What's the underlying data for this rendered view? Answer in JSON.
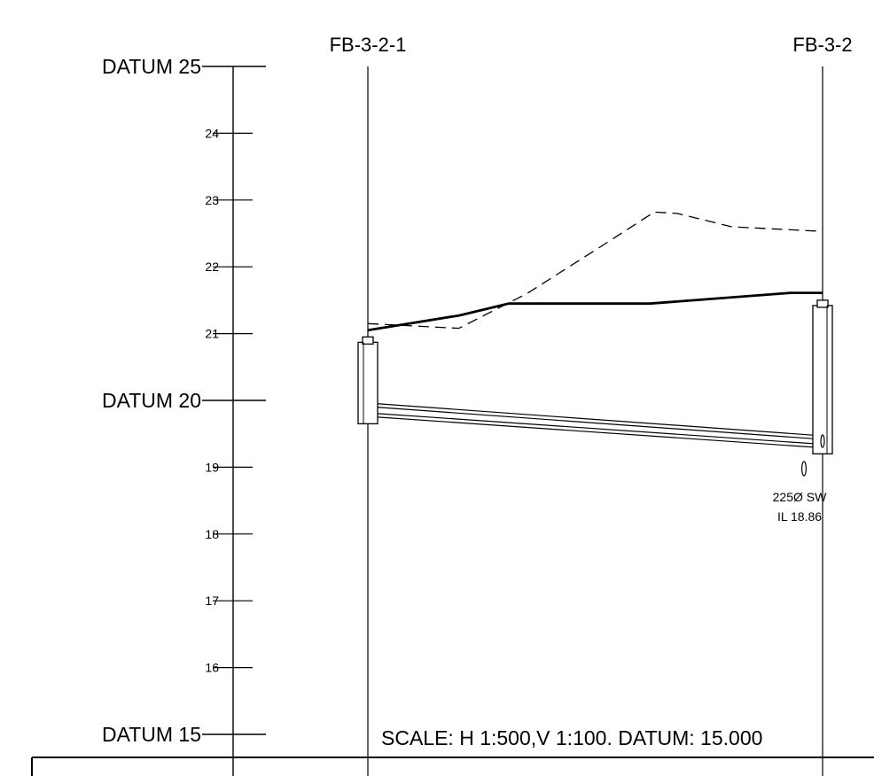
{
  "profile": {
    "datum_labels": [
      {
        "level": 25,
        "text": "DATUM 25"
      },
      {
        "level": 20,
        "text": "DATUM 20"
      },
      {
        "level": 15,
        "text": "DATUM 15"
      }
    ],
    "tick_labels": [
      {
        "level": 24,
        "text": "24"
      },
      {
        "level": 23,
        "text": "23"
      },
      {
        "level": 22,
        "text": "22"
      },
      {
        "level": 21,
        "text": "21"
      },
      {
        "level": 19,
        "text": "19"
      },
      {
        "level": 18,
        "text": "18"
      },
      {
        "level": 17,
        "text": "17"
      },
      {
        "level": 16,
        "text": "16"
      }
    ],
    "manholes": [
      {
        "id": "FB-3-2-1",
        "cover_level": 20.95,
        "base_level": 19.65
      },
      {
        "id": "FB-3-2",
        "cover_level": 21.5,
        "base_level": 19.2
      }
    ],
    "pipe": {
      "invert_upstream": 19.75,
      "invert_downstream": 19.3,
      "crown_upstream": 19.95,
      "crown_downstream": 19.48
    },
    "finished_level": [
      {
        "chainage": 0,
        "level": 21.05
      },
      {
        "chainage": 0.2,
        "level": 21.27
      },
      {
        "chainage": 0.31,
        "level": 21.45
      },
      {
        "chainage": 0.62,
        "level": 21.45
      },
      {
        "chainage": 0.93,
        "level": 21.61
      },
      {
        "chainage": 1,
        "level": 21.61
      }
    ],
    "existing_level": [
      {
        "chainage": 0,
        "level": 21.15
      },
      {
        "chainage": 0.2,
        "level": 21.08
      },
      {
        "chainage": 0.35,
        "level": 21.6
      },
      {
        "chainage": 0.5,
        "level": 22.25
      },
      {
        "chainage": 0.63,
        "level": 22.82
      },
      {
        "chainage": 0.68,
        "level": 22.8
      },
      {
        "chainage": 0.8,
        "level": 22.6
      },
      {
        "chainage": 1,
        "level": 22.53
      }
    ],
    "incoming_pipe_note": {
      "line1": "225Ø SW",
      "line2": "IL 18.86"
    },
    "scale_note": "SCALE: H 1:500,V 1:100. DATUM: 15.000"
  }
}
